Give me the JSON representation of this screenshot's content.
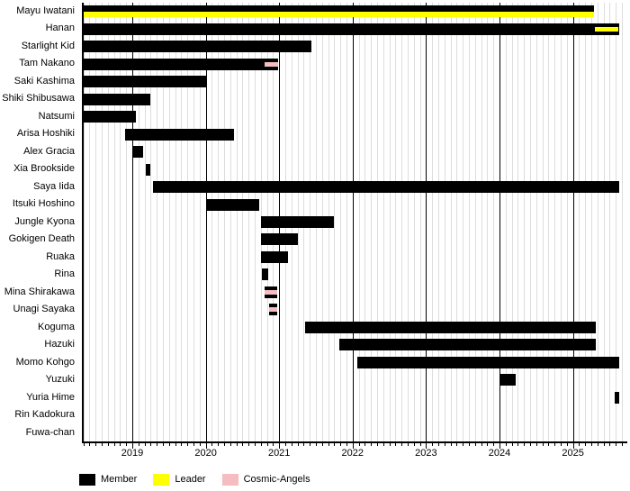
{
  "colors": {
    "member": "#000000",
    "leader": "#FFFF00",
    "cosmic_angels": "#F5BDC0",
    "grid_minor": "#DDDDDD",
    "grid_major": "#000000",
    "background": "#FFFFFF"
  },
  "chart_data": {
    "type": "gantt-timeline",
    "title": "",
    "x_axis": {
      "tick_years": [
        2019,
        2020,
        2021,
        2022,
        2023,
        2024,
        2025
      ],
      "range_start": 2018.314,
      "range_end": 2025.74,
      "minor_tick_interval_months": 1,
      "grid": "on"
    },
    "legend": {
      "position": "bottom",
      "items": [
        {
          "label": "Member",
          "color": "#000000"
        },
        {
          "label": "Leader",
          "color": "#FFFF00"
        },
        {
          "label": "Cosmic-Angels",
          "color": "#F5BDC0"
        }
      ]
    },
    "rows": [
      {
        "name": "Mayu Iwatani",
        "segments": [
          {
            "category": "Member",
            "start": 2018.314,
            "end": 2025.29,
            "overlay": {
              "category": "Leader",
              "start": 2018.314,
              "end": 2025.29,
              "position": "bottom"
            }
          }
        ]
      },
      {
        "name": "Hanan",
        "segments": [
          {
            "category": "Member",
            "start": 2018.314,
            "end": 2025.63,
            "overlay": {
              "category": "Leader",
              "start": 2025.3,
              "end": 2025.62,
              "position": "middle"
            }
          }
        ]
      },
      {
        "name": "Starlight Kid",
        "segments": [
          {
            "category": "Member",
            "start": 2018.314,
            "end": 2021.44
          }
        ]
      },
      {
        "name": "Tam Nakano",
        "segments": [
          {
            "category": "Member",
            "start": 2018.314,
            "end": 2020.99,
            "overlay": {
              "category": "Cosmic-Angels",
              "start": 2020.8,
              "end": 2020.98,
              "position": "middle"
            }
          }
        ]
      },
      {
        "name": "Saki Kashima",
        "segments": [
          {
            "category": "Member",
            "start": 2018.314,
            "end": 2020.02
          }
        ]
      },
      {
        "name": "Shiki Shibusawa",
        "segments": [
          {
            "category": "Member",
            "start": 2018.314,
            "end": 2019.25
          }
        ]
      },
      {
        "name": "Natsumi",
        "segments": [
          {
            "category": "Member",
            "start": 2018.314,
            "end": 2019.05
          }
        ]
      },
      {
        "name": "Arisa Hoshiki",
        "segments": [
          {
            "category": "Member",
            "start": 2018.9,
            "end": 2020.39
          }
        ]
      },
      {
        "name": "Alex Gracia",
        "segments": [
          {
            "category": "Member",
            "start": 2019.01,
            "end": 2019.15
          }
        ]
      },
      {
        "name": "Xia Brookside",
        "segments": [
          {
            "category": "Member",
            "start": 2019.18,
            "end": 2019.25
          }
        ]
      },
      {
        "name": "Saya Iida",
        "segments": [
          {
            "category": "Member",
            "start": 2019.28,
            "end": 2025.63
          }
        ]
      },
      {
        "name": "Itsuki Hoshino",
        "segments": [
          {
            "category": "Member",
            "start": 2020.0,
            "end": 2020.73
          }
        ]
      },
      {
        "name": "Jungle Kyona",
        "segments": [
          {
            "category": "Member",
            "start": 2020.75,
            "end": 2021.74
          }
        ]
      },
      {
        "name": "Gokigen Death",
        "segments": [
          {
            "category": "Member",
            "start": 2020.75,
            "end": 2021.26
          }
        ]
      },
      {
        "name": "Ruaka",
        "segments": [
          {
            "category": "Member",
            "start": 2020.75,
            "end": 2021.12
          }
        ]
      },
      {
        "name": "Rina",
        "segments": [
          {
            "category": "Member",
            "start": 2020.765,
            "end": 2020.85
          }
        ]
      },
      {
        "name": "Mina Shirakawa",
        "segments": [
          {
            "category": "Member",
            "start": 2020.8,
            "end": 2020.97,
            "overlay": {
              "category": "Cosmic-Angels",
              "start": 2020.8,
              "end": 2020.97,
              "position": "middle"
            }
          }
        ]
      },
      {
        "name": "Unagi Sayaka",
        "segments": [
          {
            "category": "Member",
            "start": 2020.86,
            "end": 2020.97,
            "overlay": {
              "category": "Cosmic-Angels",
              "start": 2020.86,
              "end": 2020.97,
              "position": "middle"
            }
          }
        ]
      },
      {
        "name": "Koguma",
        "segments": [
          {
            "category": "Member",
            "start": 2021.35,
            "end": 2025.31
          }
        ]
      },
      {
        "name": "Hazuki",
        "segments": [
          {
            "category": "Member",
            "start": 2021.82,
            "end": 2025.31
          }
        ]
      },
      {
        "name": "Momo Kohgo",
        "segments": [
          {
            "category": "Member",
            "start": 2022.06,
            "end": 2025.63
          }
        ]
      },
      {
        "name": "Yuzuki",
        "segments": [
          {
            "category": "Member",
            "start": 2024.0,
            "end": 2024.22
          }
        ]
      },
      {
        "name": "Yuria Hime",
        "segments": [
          {
            "category": "Member",
            "start": 2025.57,
            "end": 2025.63
          }
        ]
      },
      {
        "name": "Rin Kadokura",
        "segments": []
      },
      {
        "name": "Fuwa-chan",
        "segments": []
      }
    ]
  }
}
